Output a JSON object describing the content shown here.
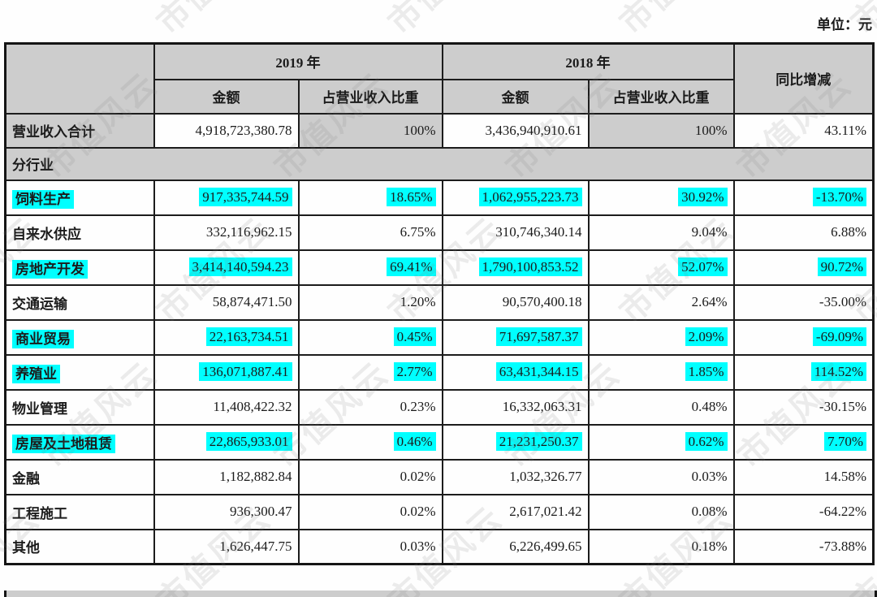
{
  "unit_label": "单位：元",
  "watermark": {
    "text": "市值风云"
  },
  "colors": {
    "highlight": "#00ffff",
    "header_bg": "#cdcdcd",
    "border": "#1c1c1c"
  },
  "table": {
    "header": {
      "year_2019": "2019 年",
      "year_2018": "2018 年",
      "yoy": "同比增减",
      "amount": "金额",
      "pct_of_revenue": "占营业收入比重"
    },
    "total_row": {
      "label": "营业收入合计",
      "a2019": "4,918,723,380.78",
      "p2019": "100%",
      "a2018": "3,436,940,910.61",
      "p2018": "100%",
      "yoy": "43.11%"
    },
    "section_label": "分行业",
    "rows": [
      {
        "label": "饲料生产",
        "a2019": "917,335,744.59",
        "p2019": "18.65%",
        "a2018": "1,062,955,223.73",
        "p2018": "30.92%",
        "yoy": "-13.70%",
        "highlight": true
      },
      {
        "label": "自来水供应",
        "a2019": "332,116,962.15",
        "p2019": "6.75%",
        "a2018": "310,746,340.14",
        "p2018": "9.04%",
        "yoy": "6.88%",
        "highlight": false
      },
      {
        "label": "房地产开发",
        "a2019": "3,414,140,594.23",
        "p2019": "69.41%",
        "a2018": "1,790,100,853.52",
        "p2018": "52.07%",
        "yoy": "90.72%",
        "highlight": true
      },
      {
        "label": "交通运输",
        "a2019": "58,874,471.50",
        "p2019": "1.20%",
        "a2018": "90,570,400.18",
        "p2018": "2.64%",
        "yoy": "-35.00%",
        "highlight": false
      },
      {
        "label": "商业贸易",
        "a2019": "22,163,734.51",
        "p2019": "0.45%",
        "a2018": "71,697,587.37",
        "p2018": "2.09%",
        "yoy": "-69.09%",
        "highlight": true
      },
      {
        "label": "养殖业",
        "a2019": "136,071,887.41",
        "p2019": "2.77%",
        "a2018": "63,431,344.15",
        "p2018": "1.85%",
        "yoy": "114.52%",
        "highlight": true
      },
      {
        "label": "物业管理",
        "a2019": "11,408,422.32",
        "p2019": "0.23%",
        "a2018": "16,332,063.31",
        "p2018": "0.48%",
        "yoy": "-30.15%",
        "highlight": false
      },
      {
        "label": "房屋及土地租赁",
        "a2019": "22,865,933.01",
        "p2019": "0.46%",
        "a2018": "21,231,250.37",
        "p2018": "0.62%",
        "yoy": "7.70%",
        "highlight": true
      },
      {
        "label": "金融",
        "a2019": "1,182,882.84",
        "p2019": "0.02%",
        "a2018": "1,032,326.77",
        "p2018": "0.03%",
        "yoy": "14.58%",
        "highlight": false
      },
      {
        "label": "工程施工",
        "a2019": "936,300.47",
        "p2019": "0.02%",
        "a2018": "2,617,021.42",
        "p2018": "0.08%",
        "yoy": "-64.22%",
        "highlight": false
      },
      {
        "label": "其他",
        "a2019": "1,626,447.75",
        "p2019": "0.03%",
        "a2018": "6,226,499.65",
        "p2018": "0.18%",
        "yoy": "-73.88%",
        "highlight": false
      }
    ]
  }
}
